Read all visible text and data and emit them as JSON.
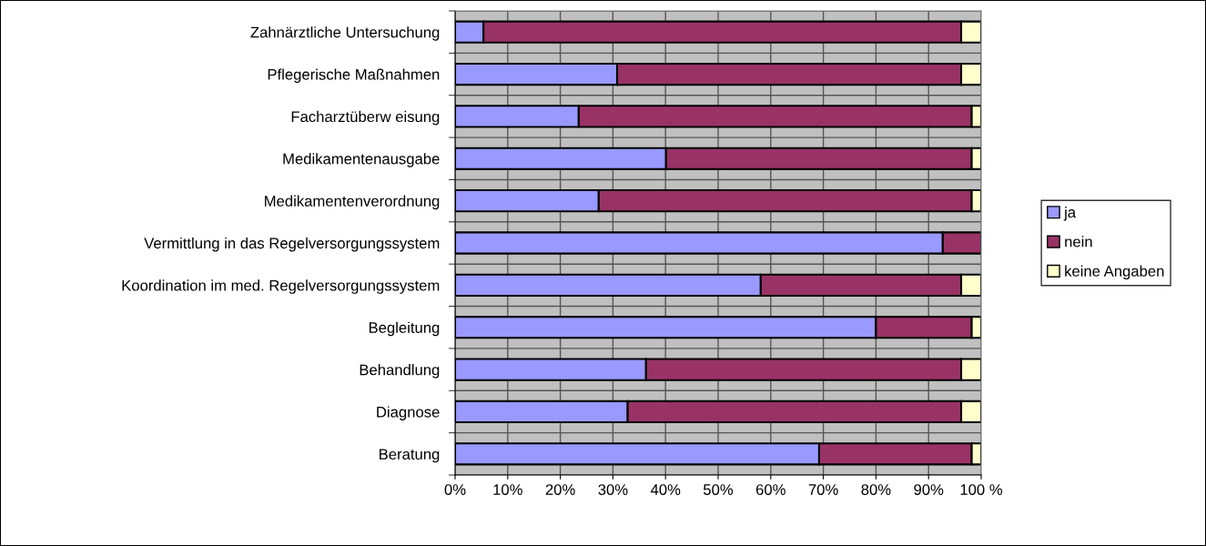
{
  "chart_data": {
    "type": "bar",
    "orientation": "horizontal",
    "stacked": true,
    "categories": [
      "Zahnärztliche Untersuchung",
      "Pflegerische Maßnahmen",
      "Facharztüberw eisung",
      "Medikamentenausgabe",
      "Medikamentenverordnung",
      "Vermittlung in das Regelversorgungssystem",
      "Koordination im med. Regelversorgungssystem",
      "Begleitung",
      "Behandlung",
      "Diagnose",
      "Beratung"
    ],
    "series": [
      {
        "name": "ja",
        "color": "#9999ff",
        "values": [
          5.4,
          30.8,
          23.5,
          40.1,
          27.3,
          92.7,
          58.1,
          80.0,
          36.3,
          32.8,
          69.2
        ]
      },
      {
        "name": "nein",
        "color": "#993366",
        "values": [
          90.8,
          65.4,
          74.7,
          58.1,
          70.9,
          7.3,
          38.1,
          18.2,
          59.9,
          63.4,
          29.0
        ]
      },
      {
        "name": "keine Angaben",
        "color": "#ffffcc",
        "values": [
          3.8,
          3.8,
          1.8,
          1.8,
          1.8,
          null,
          3.8,
          1.8,
          3.8,
          3.8,
          1.8
        ]
      }
    ],
    "xlim": [
      0,
      100
    ],
    "xticks": [
      {
        "value": 0,
        "label": "0%"
      },
      {
        "value": 10,
        "label": "10%"
      },
      {
        "value": 20,
        "label": "20%"
      },
      {
        "value": 30,
        "label": "30%"
      },
      {
        "value": 40,
        "label": "40%"
      },
      {
        "value": 50,
        "label": "50%"
      },
      {
        "value": 60,
        "label": "60%"
      },
      {
        "value": 70,
        "label": "70%"
      },
      {
        "value": 80,
        "label": "80%"
      },
      {
        "value": 90,
        "label": "90%"
      },
      {
        "value": 100,
        "label": "100 %"
      }
    ],
    "grid": true,
    "legend": "right"
  }
}
